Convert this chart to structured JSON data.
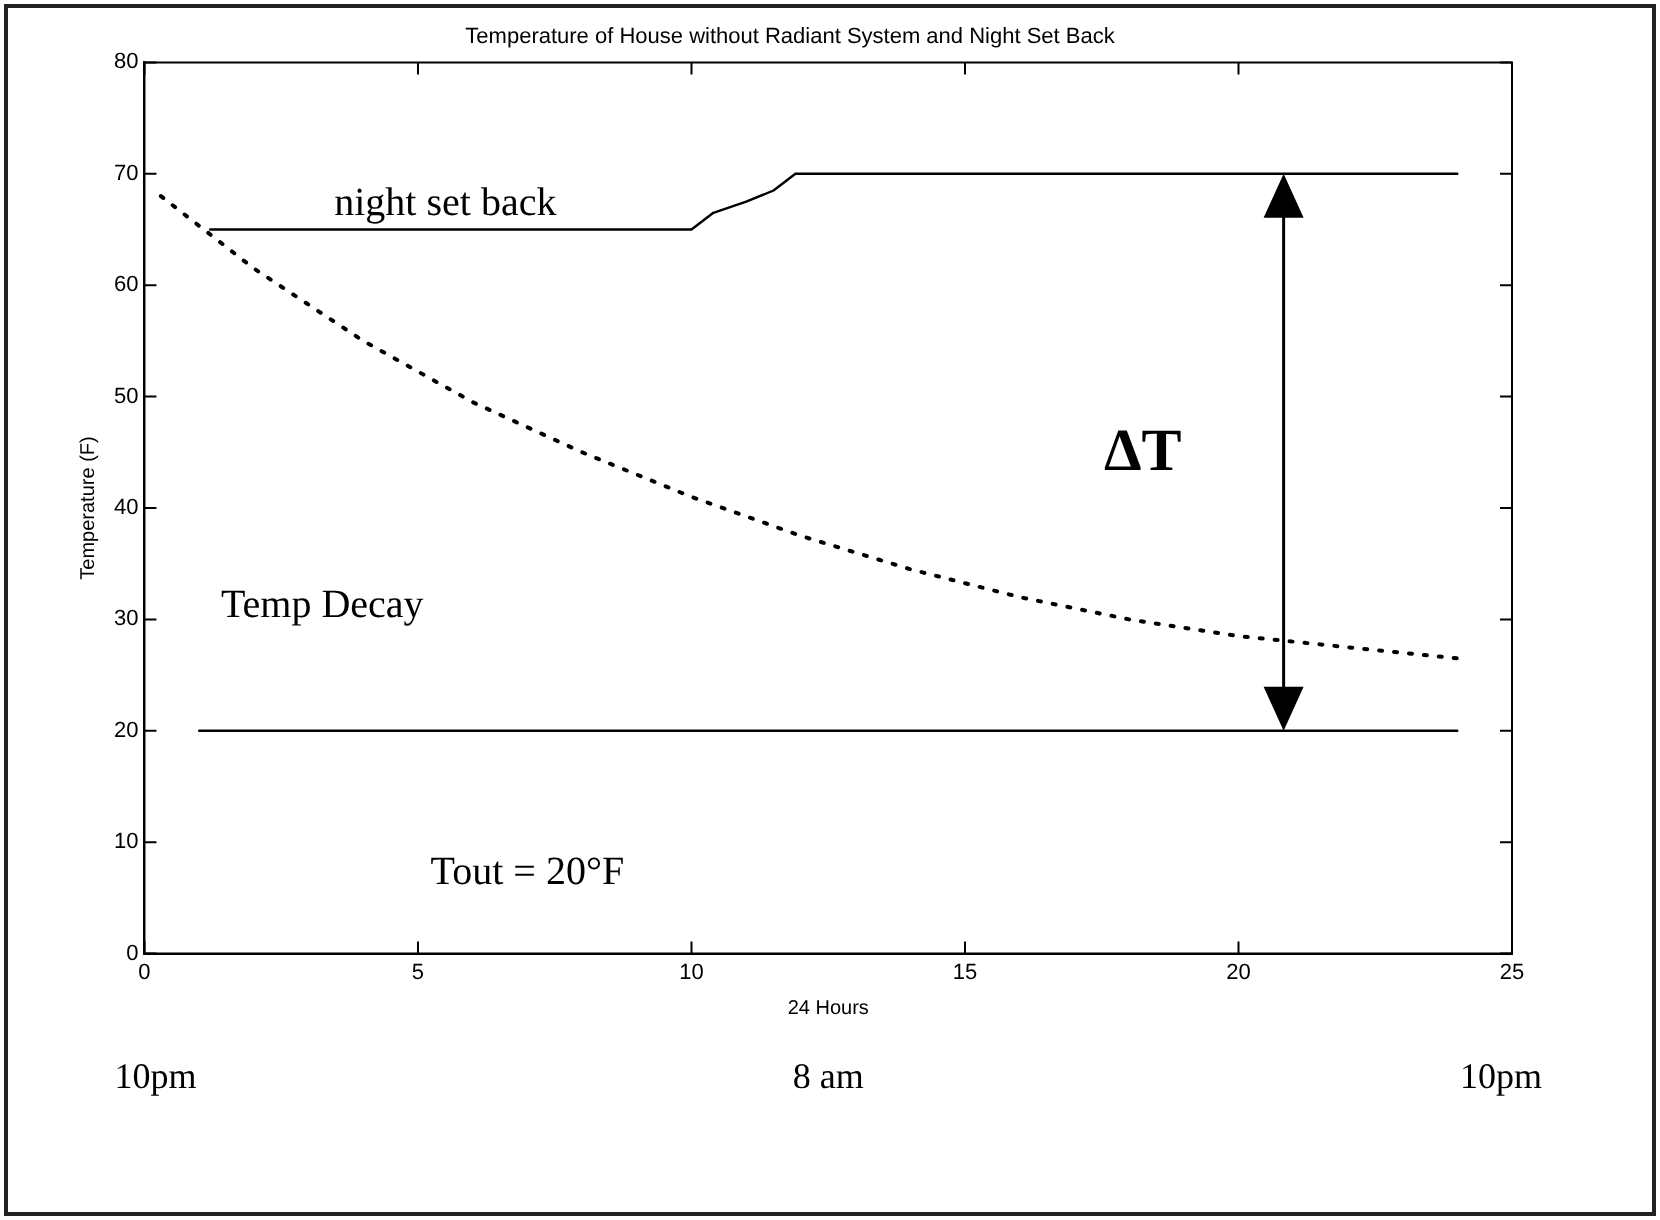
{
  "chart_data": {
    "type": "line",
    "title": "Temperature of House without Radiant System and Night Set Back",
    "xlabel": "24 Hours",
    "ylabel": "Temperature (F)",
    "xlim": [
      0,
      25
    ],
    "xticks": [
      0,
      5,
      10,
      15,
      20,
      25
    ],
    "ylim": [
      0,
      80
    ],
    "yticks": [
      0,
      10,
      20,
      30,
      40,
      50,
      60,
      70,
      80
    ],
    "grid": false,
    "legend": false,
    "marker": "none",
    "series": [
      {
        "color": "#000000",
        "line_style": "solid",
        "x": [
          1.2,
          10,
          10.4,
          11,
          11.5,
          11.9,
          24
        ],
        "values": [
          65,
          65,
          66.5,
          67.5,
          68.5,
          70,
          70
        ]
      },
      {
        "color": "#000000",
        "line_style": "dotted",
        "x": [
          0.3,
          2,
          4,
          6,
          8,
          10,
          12,
          14,
          16,
          18,
          20,
          22,
          24
        ],
        "values": [
          68,
          61.5,
          55,
          49.5,
          45,
          41,
          37.5,
          34.5,
          32,
          30,
          28.5,
          27.5,
          26.5
        ]
      },
      {
        "color": "#000000",
        "line_style": "solid",
        "x": [
          1,
          24
        ],
        "values": [
          20,
          20
        ]
      }
    ],
    "annotations": [
      "night set back",
      "Temp Decay",
      "ΔT",
      "Tout = 20°F",
      "10pm",
      "8 am",
      "10pm"
    ]
  }
}
